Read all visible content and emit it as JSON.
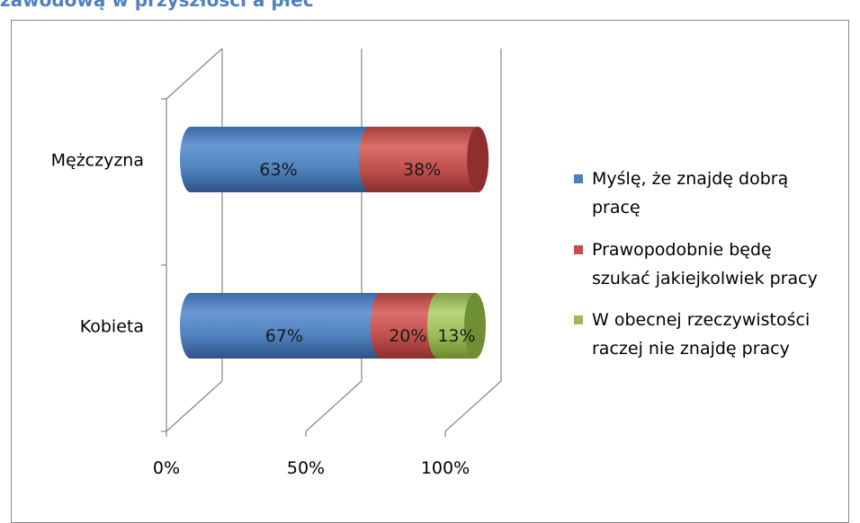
{
  "page": {
    "heading": "zawodową w przyszłości a płeć"
  },
  "colors": {
    "series_1": "#4f81bd",
    "series_2": "#c0504d",
    "series_3": "#9bbb59",
    "axis": "#868686",
    "heading": "#4f81bd"
  },
  "chart_data": {
    "type": "bar",
    "orientation": "horizontal",
    "style": "3d-cylinder-stacked",
    "categories": [
      "Mężczyzna",
      "Kobieta"
    ],
    "series": [
      {
        "name": "Myślę, że znajdę dobrą pracę",
        "legend_lines": [
          "Myślę, że znajdę dobrą",
          "pracę"
        ],
        "values": [
          63,
          67
        ],
        "labels": [
          "63%",
          "67%"
        ]
      },
      {
        "name": "Prawopodobnie będę szukać jakiejkolwiek pracy",
        "legend_lines": [
          "Prawopodobnie będę",
          "szukać jakiejkolwiek pracy"
        ],
        "values": [
          38,
          20
        ],
        "labels": [
          "38%",
          "20%"
        ]
      },
      {
        "name": "W obecnej rzeczywistości raczej nie znajdę pracy",
        "legend_lines": [
          "W obecnej rzeczywistości",
          "raczej nie znajdę pracy"
        ],
        "values": [
          0,
          13
        ],
        "labels": [
          "",
          "13%"
        ]
      }
    ],
    "x_ticks": [
      "0%",
      "50%",
      "100%"
    ],
    "xlim": [
      0,
      100
    ],
    "unit": "%",
    "legend_position": "right",
    "grid": true
  }
}
